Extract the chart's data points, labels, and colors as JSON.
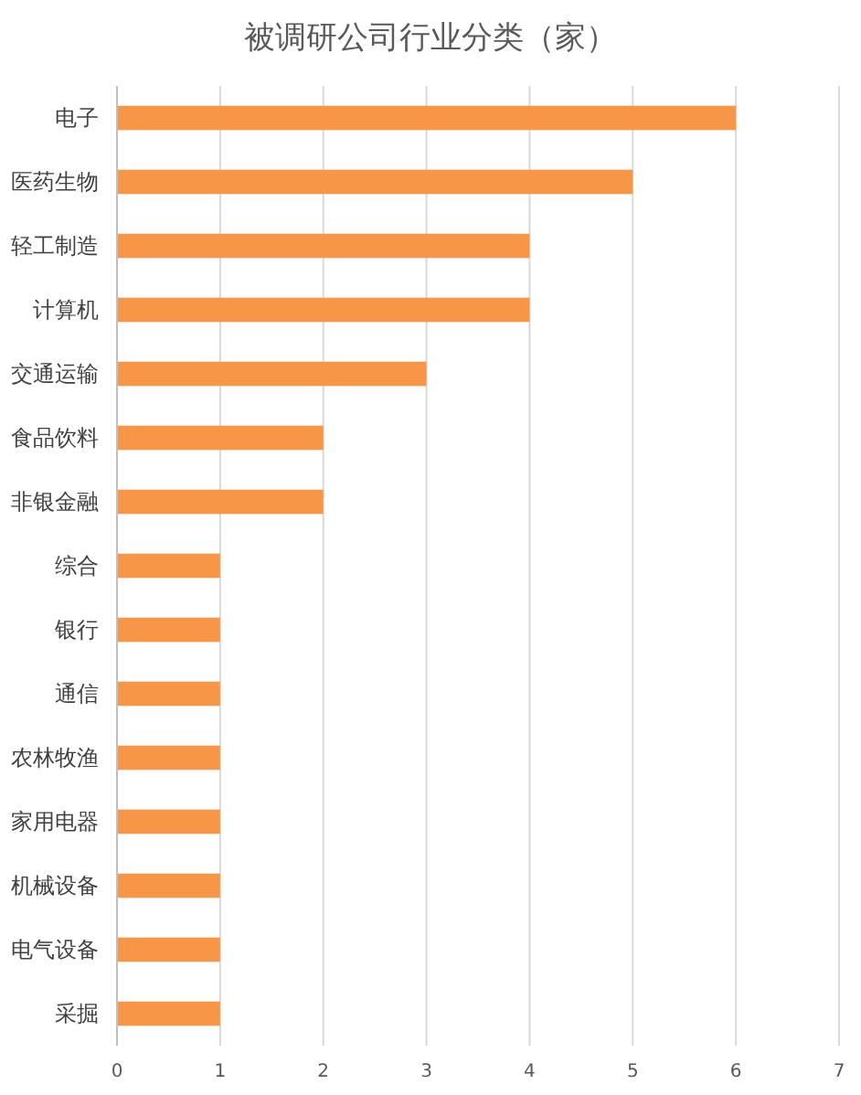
{
  "chart_data": {
    "type": "bar",
    "orientation": "horizontal",
    "title": "被调研公司行业分类（家）",
    "categories": [
      "电子",
      "医药生物",
      "轻工制造",
      "计算机",
      "交通运输",
      "食品饮料",
      "非银金融",
      "综合",
      "银行",
      "通信",
      "农林牧渔",
      "家用电器",
      "机械设备",
      "电气设备",
      "采掘"
    ],
    "values": [
      6,
      5,
      4,
      4,
      3,
      2,
      2,
      1,
      1,
      1,
      1,
      1,
      1,
      1,
      1
    ],
    "color": "#f79646",
    "xlim": [
      0,
      7
    ],
    "xticks": [
      0,
      1,
      2,
      3,
      4,
      5,
      6,
      7
    ],
    "grid": "x"
  }
}
